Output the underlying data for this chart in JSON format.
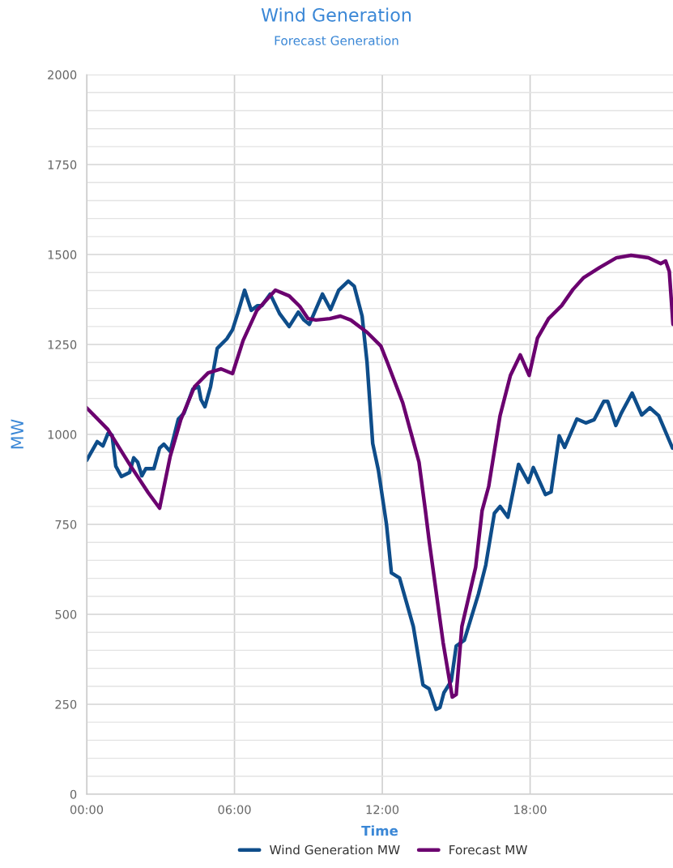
{
  "chart_data": {
    "type": "line",
    "title": "Wind Generation",
    "subtitle": "Forecast Generation",
    "xlabel": "Time",
    "ylabel": "MW",
    "xlim": [
      0,
      23.8
    ],
    "xticks": [
      {
        "value": 0,
        "label": "00:00"
      },
      {
        "value": 6,
        "label": "06:00"
      },
      {
        "value": 12,
        "label": "12:00"
      },
      {
        "value": 18,
        "label": "18:00"
      }
    ],
    "ylim": [
      0,
      2000
    ],
    "yticks": [
      0,
      {
        "value": 50,
        "label": null
      },
      {
        "value": 100,
        "label": null
      },
      {
        "value": 150,
        "label": null
      },
      {
        "value": 200,
        "label": null
      },
      250,
      {
        "value": 300,
        "label": null
      },
      {
        "value": 350,
        "label": null
      },
      {
        "value": 400,
        "label": null
      },
      {
        "value": 450,
        "label": null
      },
      500,
      {
        "value": 550,
        "label": null
      },
      {
        "value": 600,
        "label": null
      },
      {
        "value": 650,
        "label": null
      },
      {
        "value": 700,
        "label": null
      },
      750,
      {
        "value": 800,
        "label": null
      },
      {
        "value": 850,
        "label": null
      },
      {
        "value": 900,
        "label": null
      },
      {
        "value": 950,
        "label": null
      },
      1000,
      {
        "value": 1050,
        "label": null
      },
      {
        "value": 1100,
        "label": null
      },
      {
        "value": 1150,
        "label": null
      },
      {
        "value": 1200,
        "label": null
      },
      1250,
      {
        "value": 1300,
        "label": null
      },
      {
        "value": 1350,
        "label": null
      },
      {
        "value": 1400,
        "label": null
      },
      {
        "value": 1450,
        "label": null
      },
      1500,
      {
        "value": 1550,
        "label": null
      },
      {
        "value": 1600,
        "label": null
      },
      {
        "value": 1650,
        "label": null
      },
      {
        "value": 1700,
        "label": null
      },
      1750,
      {
        "value": 1800,
        "label": null
      },
      {
        "value": 1850,
        "label": null
      },
      {
        "value": 1900,
        "label": null
      },
      {
        "value": 1950,
        "label": null
      },
      2000
    ],
    "grid": true,
    "legend": "bottom",
    "marker": "none",
    "line_style": "solid",
    "series": [
      {
        "name": "Wind Generation MW",
        "color": "#0e4d8a",
        "x": [
          0,
          0.43,
          0.66,
          0.86,
          1.03,
          1.18,
          1.41,
          1.74,
          1.91,
          2.07,
          2.24,
          2.4,
          2.73,
          2.96,
          3.13,
          3.39,
          3.72,
          3.95,
          4.31,
          4.54,
          4.64,
          4.8,
          5.03,
          5.3,
          5.69,
          5.92,
          6.13,
          6.41,
          6.68,
          6.94,
          7.11,
          7.45,
          7.83,
          8.22,
          8.59,
          8.82,
          9.04,
          9.57,
          9.9,
          10.23,
          10.62,
          10.86,
          11.18,
          11.38,
          11.61,
          11.84,
          12.17,
          12.37,
          12.7,
          13.26,
          13.65,
          13.9,
          14.18,
          14.34,
          14.5,
          14.8,
          15.0,
          15.33,
          15.9,
          16.2,
          16.55,
          16.78,
          17.1,
          17.53,
          17.93,
          18.13,
          18.62,
          18.85,
          19.18,
          19.4,
          19.9,
          20.26,
          20.6,
          20.99,
          21.15,
          21.48,
          21.7,
          22.14,
          22.53,
          22.86,
          23.22,
          23.78
        ],
        "values": [
          928,
          980,
          968,
          1002,
          998,
          912,
          883,
          894,
          935,
          923,
          885,
          905,
          905,
          962,
          973,
          953,
          1043,
          1059,
          1126,
          1133,
          1097,
          1077,
          1133,
          1239,
          1266,
          1291,
          1336,
          1401,
          1345,
          1358,
          1358,
          1390,
          1336,
          1300,
          1340,
          1318,
          1306,
          1390,
          1347,
          1401,
          1426,
          1412,
          1329,
          1201,
          975,
          901,
          750,
          615,
          601,
          466,
          304,
          293,
          236,
          241,
          282,
          315,
          412,
          428,
          556,
          637,
          781,
          800,
          770,
          917,
          867,
          908,
          833,
          840,
          996,
          964,
          1043,
          1032,
          1041,
          1092,
          1092,
          1025,
          1059,
          1115,
          1054,
          1074,
          1052,
          962
        ]
      },
      {
        "name": "Forecast MW",
        "color": "#6b006f",
        "x": [
          0,
          0.86,
          1.74,
          2.5,
          2.96,
          3.39,
          3.82,
          4.38,
          4.93,
          5.46,
          5.92,
          6.35,
          6.91,
          7.66,
          8.22,
          8.65,
          8.98,
          9.31,
          9.87,
          10.3,
          10.72,
          11.38,
          11.94,
          12.2,
          12.83,
          13.49,
          13.75,
          13.9,
          14.47,
          14.84,
          15.0,
          15.23,
          15.79,
          16.05,
          16.32,
          16.78,
          17.2,
          17.6,
          17.96,
          18.3,
          18.75,
          19.28,
          19.74,
          20.16,
          20.82,
          21.5,
          22.1,
          22.8,
          23.3,
          23.5,
          23.65,
          23.8
        ],
        "values": [
          1074,
          1014,
          917,
          838,
          795,
          939,
          1041,
          1133,
          1171,
          1182,
          1169,
          1261,
          1345,
          1401,
          1385,
          1356,
          1322,
          1318,
          1322,
          1329,
          1318,
          1284,
          1246,
          1201,
          1088,
          923,
          788,
          705,
          421,
          270,
          277,
          466,
          631,
          788,
          856,
          1052,
          1164,
          1221,
          1164,
          1268,
          1322,
          1358,
          1403,
          1435,
          1464,
          1491,
          1498,
          1491,
          1475,
          1482,
          1453,
          1306
        ]
      }
    ]
  }
}
